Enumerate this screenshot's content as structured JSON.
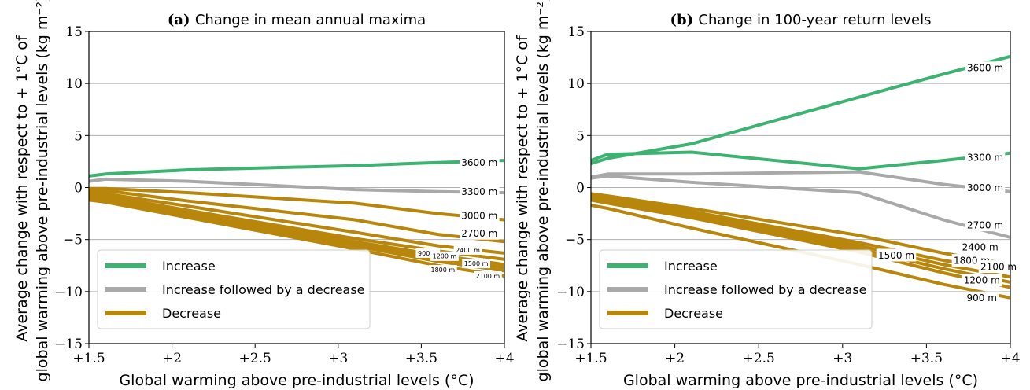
{
  "figure": {
    "ylabel_line1": "Average change with respect to + 1°C of",
    "ylabel_line2": "global warming above pre-industrial levels (kg m⁻²)"
  },
  "colors": {
    "increase": "#3cb371",
    "increase_decrease": "#a9a9a9",
    "decrease": "#b8860b"
  },
  "legend": {
    "placement": "lower-left",
    "items": [
      {
        "label": "Increase",
        "color": "#3cb371"
      },
      {
        "label": "Increase followed by a decrease",
        "color": "#a9a9a9"
      },
      {
        "label": "Decrease",
        "color": "#b8860b"
      }
    ]
  },
  "chart_data": [
    {
      "type": "line",
      "title_prefix": "(a)",
      "title": "Change in mean annual maxima",
      "xlabel": "Global warming above pre-industrial levels (°C)",
      "x": [
        1.5,
        1.6,
        2.1,
        3.1,
        3.6,
        4.0
      ],
      "xticks": [
        1.5,
        2,
        2.5,
        3,
        3.5,
        4
      ],
      "xtick_labels": [
        "+1.5",
        "+2",
        "+2.5",
        "+3",
        "+3.5",
        "+4"
      ],
      "yticks": [
        -15,
        -10,
        -5,
        0,
        5,
        10,
        15
      ],
      "xlim": [
        1.5,
        4.0
      ],
      "ylim": [
        -15,
        15
      ],
      "grid": "horizontal",
      "series": [
        {
          "name": "3600 m",
          "category": "increase",
          "values": [
            1.1,
            1.3,
            1.7,
            2.1,
            2.4,
            2.6
          ]
        },
        {
          "name": "3300 m",
          "category": "increase_decrease",
          "values": [
            0.6,
            0.8,
            0.6,
            -0.2,
            -0.4,
            -0.5
          ]
        },
        {
          "name": "3000 m",
          "category": "decrease",
          "values": [
            -0.1,
            -0.1,
            -0.5,
            -1.5,
            -2.5,
            -3.1
          ]
        },
        {
          "name": "2700 m",
          "category": "decrease",
          "values": [
            -0.2,
            -0.3,
            -1.3,
            -3.1,
            -4.5,
            -5.2
          ]
        },
        {
          "name": "2400 m",
          "category": "decrease",
          "values": [
            -0.4,
            -0.6,
            -1.8,
            -4.3,
            -5.6,
            -6.3
          ]
        },
        {
          "name": "900 m",
          "category": "decrease",
          "values": [
            -0.6,
            -0.8,
            -2.2,
            -4.9,
            -6.1,
            -6.9
          ]
        },
        {
          "name": "1200 m",
          "category": "decrease",
          "values": [
            -0.8,
            -1.0,
            -2.4,
            -5.2,
            -6.5,
            -7.4
          ]
        },
        {
          "name": "1500 m",
          "category": "decrease",
          "values": [
            -0.9,
            -1.1,
            -2.6,
            -5.4,
            -6.8,
            -7.7
          ]
        },
        {
          "name": "1800 m",
          "category": "decrease",
          "values": [
            -1.0,
            -1.2,
            -2.7,
            -5.6,
            -7.1,
            -8.0
          ]
        },
        {
          "name": "2100 m",
          "category": "decrease",
          "values": [
            -1.2,
            -1.4,
            -2.9,
            -5.9,
            -7.5,
            -8.5
          ]
        }
      ],
      "line_labels": [
        {
          "text": "3600 m",
          "x": 3.85,
          "y": 2.4,
          "size": "normal"
        },
        {
          "text": "3300 m",
          "x": 3.85,
          "y": -0.4,
          "size": "normal"
        },
        {
          "text": "3000 m",
          "x": 3.85,
          "y": -2.7,
          "size": "normal"
        },
        {
          "text": "2700 m",
          "x": 3.85,
          "y": -4.4,
          "size": "normal"
        },
        {
          "text": "2400 m",
          "x": 3.78,
          "y": -6.0,
          "size": "small"
        },
        {
          "text": "900 m",
          "x": 3.54,
          "y": -6.3,
          "size": "small"
        },
        {
          "text": "1200 m",
          "x": 3.64,
          "y": -6.6,
          "size": "small"
        },
        {
          "text": "1500 m",
          "x": 3.83,
          "y": -7.3,
          "size": "small"
        },
        {
          "text": "1800 m",
          "x": 3.63,
          "y": -7.9,
          "size": "small"
        },
        {
          "text": "2100 m",
          "x": 3.9,
          "y": -8.5,
          "size": "small"
        }
      ]
    },
    {
      "type": "line",
      "title_prefix": "(b)",
      "title": "Change in 100-year return levels",
      "xlabel": "Global warming above pre-industrial levels (°C)",
      "x": [
        1.5,
        1.6,
        2.1,
        3.1,
        3.6,
        4.0
      ],
      "xticks": [
        1.5,
        2,
        2.5,
        3,
        3.5,
        4
      ],
      "xtick_labels": [
        "+1.5",
        "+2",
        "+2.5",
        "+3",
        "+3.5",
        "+4"
      ],
      "yticks": [
        -15,
        -10,
        -5,
        0,
        5,
        10,
        15
      ],
      "xlim": [
        1.5,
        4.0
      ],
      "ylim": [
        -15,
        15
      ],
      "grid": "horizontal",
      "series": [
        {
          "name": "3600 m",
          "category": "increase",
          "values": [
            2.3,
            2.8,
            4.2,
            8.7,
            10.9,
            12.6
          ]
        },
        {
          "name": "3300 m",
          "category": "increase",
          "values": [
            2.6,
            3.2,
            3.4,
            1.8,
            2.6,
            3.3
          ]
        },
        {
          "name": "3000 m",
          "category": "increase_decrease",
          "values": [
            1.0,
            1.3,
            1.3,
            1.5,
            0.3,
            -0.4
          ]
        },
        {
          "name": "2700 m",
          "category": "increase_decrease",
          "values": [
            0.9,
            1.1,
            0.5,
            -0.5,
            -3.1,
            -4.8
          ]
        },
        {
          "name": "2400 m",
          "category": "decrease",
          "values": [
            -0.6,
            -0.8,
            -2.0,
            -4.6,
            -6.3,
            -7.4
          ]
        },
        {
          "name": "1500 m",
          "category": "decrease",
          "values": [
            -0.8,
            -1.0,
            -2.3,
            -5.3,
            -7.0,
            -8.0
          ]
        },
        {
          "name": "1800 m",
          "category": "decrease",
          "values": [
            -0.9,
            -1.1,
            -2.5,
            -5.6,
            -7.4,
            -8.6
          ]
        },
        {
          "name": "2100 m",
          "category": "decrease",
          "values": [
            -1.0,
            -1.3,
            -2.7,
            -5.9,
            -7.8,
            -9.1
          ]
        },
        {
          "name": "1200 m",
          "category": "decrease",
          "values": [
            -1.2,
            -1.5,
            -2.9,
            -6.2,
            -8.2,
            -9.6
          ]
        },
        {
          "name": "900 m",
          "category": "decrease",
          "values": [
            -1.7,
            -2.0,
            -3.9,
            -7.4,
            -9.3,
            -10.6
          ]
        }
      ],
      "line_labels": [
        {
          "text": "3600 m",
          "x": 3.85,
          "y": 11.5,
          "size": "normal"
        },
        {
          "text": "3300 m",
          "x": 3.85,
          "y": 2.9,
          "size": "normal"
        },
        {
          "text": "3000 m",
          "x": 3.85,
          "y": 0.0,
          "size": "normal"
        },
        {
          "text": "2700 m",
          "x": 3.85,
          "y": -3.6,
          "size": "normal"
        },
        {
          "text": "2400 m",
          "x": 3.82,
          "y": -5.7,
          "size": "normal"
        },
        {
          "text": "1500 m",
          "x": 3.32,
          "y": -6.5,
          "size": "normal"
        },
        {
          "text": "1800 m",
          "x": 3.77,
          "y": -7.0,
          "size": "normal"
        },
        {
          "text": "2100 m",
          "x": 3.93,
          "y": -7.6,
          "size": "normal"
        },
        {
          "text": "1200 m",
          "x": 3.83,
          "y": -8.9,
          "size": "normal"
        },
        {
          "text": "900 m",
          "x": 3.83,
          "y": -10.6,
          "size": "normal"
        }
      ]
    }
  ]
}
